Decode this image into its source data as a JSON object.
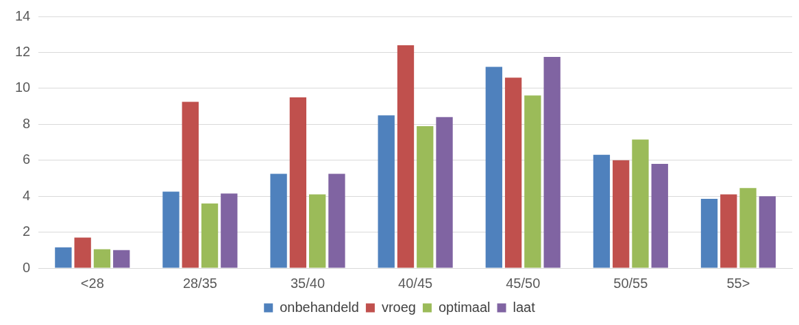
{
  "chart_data": {
    "type": "bar",
    "categories": [
      "<28",
      "28/35",
      "35/40",
      "40/45",
      "45/50",
      "50/55",
      "55>"
    ],
    "series": [
      {
        "name": "onbehandeld",
        "color": "#4f81bd",
        "values": [
          1.15,
          4.25,
          5.25,
          8.5,
          11.2,
          6.3,
          3.85
        ]
      },
      {
        "name": "vroeg",
        "color": "#c0504d",
        "values": [
          1.7,
          9.25,
          9.5,
          12.4,
          10.6,
          6.0,
          4.1
        ]
      },
      {
        "name": "optimaal",
        "color": "#9bbb59",
        "values": [
          1.05,
          3.6,
          4.1,
          7.9,
          9.6,
          7.15,
          4.45
        ]
      },
      {
        "name": "laat",
        "color": "#8064a2",
        "values": [
          1.0,
          4.15,
          5.25,
          8.4,
          11.75,
          5.8,
          4.0
        ]
      }
    ],
    "ylim": [
      0,
      14
    ],
    "yticks": [
      0,
      2,
      4,
      6,
      8,
      10,
      12,
      14
    ],
    "grid": "y",
    "legend": "bottom"
  }
}
